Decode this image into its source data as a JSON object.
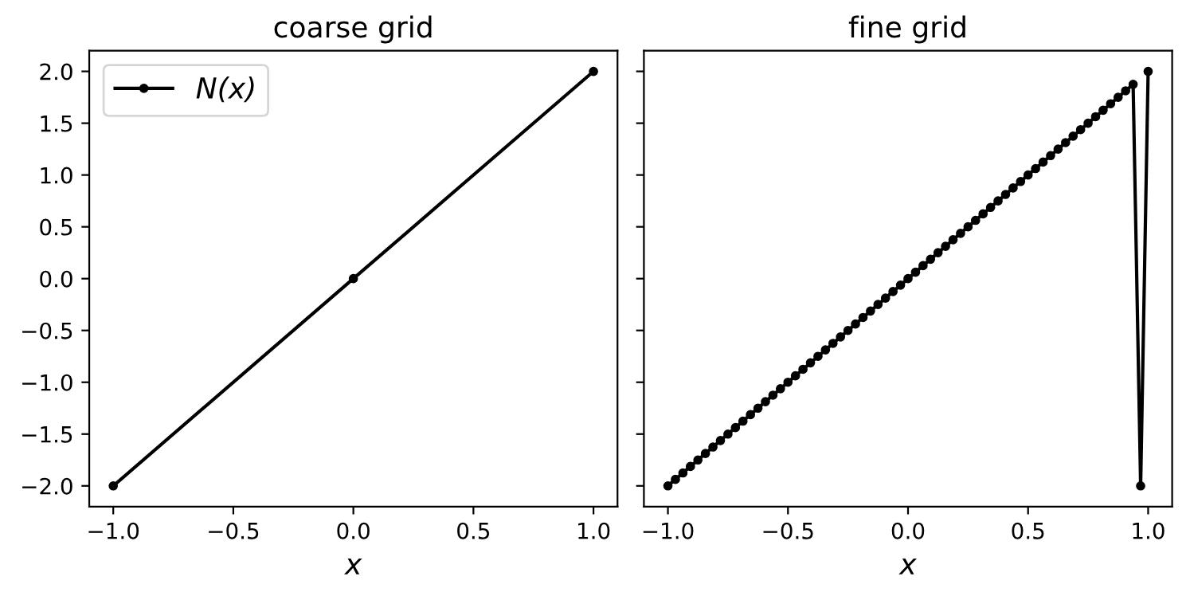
{
  "chart_data": [
    {
      "type": "line",
      "title": "coarse grid",
      "xlabel": "x",
      "marker": "circle",
      "line_style": "solid",
      "grid": false,
      "legend": "top left",
      "xlim": [
        -1.1,
        1.1
      ],
      "ylim": [
        -2.2,
        2.2
      ],
      "xticks": [
        {
          "value": -1,
          "label": "−1.0"
        },
        {
          "value": -0.5,
          "label": "−0.5"
        },
        {
          "value": 0,
          "label": "0.0"
        },
        {
          "value": 0.5,
          "label": "0.5"
        },
        {
          "value": 1,
          "label": "1.0"
        }
      ],
      "yticks": [
        {
          "value": -2,
          "label": "−2.0"
        },
        {
          "value": -1.5,
          "label": "−1.5"
        },
        {
          "value": -1,
          "label": "−1.0"
        },
        {
          "value": -0.5,
          "label": "−0.5"
        },
        {
          "value": 0,
          "label": "0.0"
        },
        {
          "value": 0.5,
          "label": "0.5"
        },
        {
          "value": 1,
          "label": "1.0"
        },
        {
          "value": 1.5,
          "label": "1.5"
        },
        {
          "value": 2,
          "label": "2.0"
        }
      ],
      "series": [
        {
          "name": "N(x)",
          "color": "#000000",
          "x": [
            -1,
            0,
            1
          ],
          "values": [
            -2,
            0,
            2
          ]
        }
      ]
    },
    {
      "type": "line",
      "title": "fine grid",
      "xlabel": "x",
      "marker": "circle",
      "line_style": "solid",
      "grid": false,
      "tick_labels": "x",
      "xlim": [
        -1.1,
        1.1
      ],
      "ylim": [
        -2.2,
        2.2
      ],
      "xticks": [
        {
          "value": -1,
          "label": "−1.0"
        },
        {
          "value": -0.5,
          "label": "−0.5"
        },
        {
          "value": 0,
          "label": "0.0"
        },
        {
          "value": 0.5,
          "label": "0.5"
        },
        {
          "value": 1,
          "label": "1.0"
        }
      ],
      "yticks": [
        {
          "value": -2,
          "label": null
        },
        {
          "value": -1.5,
          "label": null
        },
        {
          "value": -1,
          "label": null
        },
        {
          "value": -0.5,
          "label": null
        },
        {
          "value": 0,
          "label": null
        },
        {
          "value": 0.5,
          "label": null
        },
        {
          "value": 1,
          "label": null
        },
        {
          "value": 1.5,
          "label": null
        },
        {
          "value": 2,
          "label": null
        }
      ],
      "series": [
        {
          "color": "#000000",
          "x": [
            -1,
            -0.96875,
            -0.9375,
            -0.90625,
            -0.875,
            -0.84375,
            -0.8125,
            -0.78125,
            -0.75,
            -0.71875,
            -0.6875,
            -0.65625,
            -0.625,
            -0.59375,
            -0.5625,
            -0.53125,
            -0.5,
            -0.46875,
            -0.4375,
            -0.40625,
            -0.375,
            -0.34375,
            -0.3125,
            -0.28125,
            -0.25,
            -0.21875,
            -0.1875,
            -0.15625,
            -0.125,
            -0.09375,
            -0.0625,
            -0.03125,
            0,
            0.03125,
            0.0625,
            0.09375,
            0.125,
            0.15625,
            0.1875,
            0.21875,
            0.25,
            0.28125,
            0.3125,
            0.34375,
            0.375,
            0.40625,
            0.4375,
            0.46875,
            0.5,
            0.53125,
            0.5625,
            0.59375,
            0.625,
            0.65625,
            0.6875,
            0.71875,
            0.75,
            0.78125,
            0.8125,
            0.84375,
            0.875,
            0.90625,
            0.9375,
            0.96875,
            1
          ],
          "values": [
            -2,
            -1.9375,
            -1.875,
            -1.8125,
            -1.75,
            -1.6875,
            -1.625,
            -1.5625,
            -1.5,
            -1.4375,
            -1.375,
            -1.3125,
            -1.25,
            -1.1875,
            -1.125,
            -1.0625,
            -1,
            -0.9375,
            -0.875,
            -0.8125,
            -0.75,
            -0.6875,
            -0.625,
            -0.5625,
            -0.5,
            -0.4375,
            -0.375,
            -0.3125,
            -0.25,
            -0.1875,
            -0.125,
            -0.0625,
            0,
            0.0625,
            0.125,
            0.1875,
            0.25,
            0.3125,
            0.375,
            0.4375,
            0.5,
            0.5625,
            0.625,
            0.6875,
            0.75,
            0.8125,
            0.875,
            0.9375,
            1,
            1.0625,
            1.125,
            1.1875,
            1.25,
            1.3125,
            1.375,
            1.4375,
            1.5,
            1.5625,
            1.625,
            1.6875,
            1.75,
            1.8125,
            1.875,
            -2,
            2
          ]
        }
      ]
    }
  ]
}
